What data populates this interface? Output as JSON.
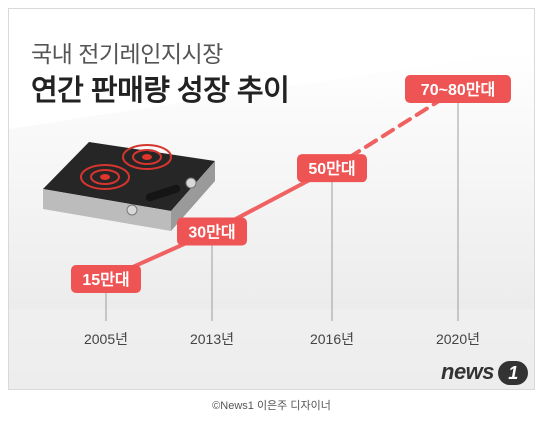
{
  "title_line1": "국내 전기레인지시장",
  "title_line2": "연간 판매량 성장 추이",
  "caption": "©News1 이은주 디자이너",
  "logo_word": "news",
  "logo_number": "1",
  "colors": {
    "line": "#f06262",
    "label_bg": "#ef5454",
    "guide": "#9e9e9e",
    "background_grey": "#ececec"
  },
  "chart_data": {
    "type": "line",
    "title": "국내 전기레인지시장 연간 판매량 성장 추이",
    "categories": [
      "2005년",
      "2013년",
      "2016년",
      "2020년"
    ],
    "values": [
      15,
      30,
      50,
      75
    ],
    "labels": [
      "15만대",
      "30만대",
      "50만대",
      "70~80만대"
    ],
    "unit": "만대",
    "projected_last_segment": true,
    "grid": false,
    "legend": "none"
  }
}
